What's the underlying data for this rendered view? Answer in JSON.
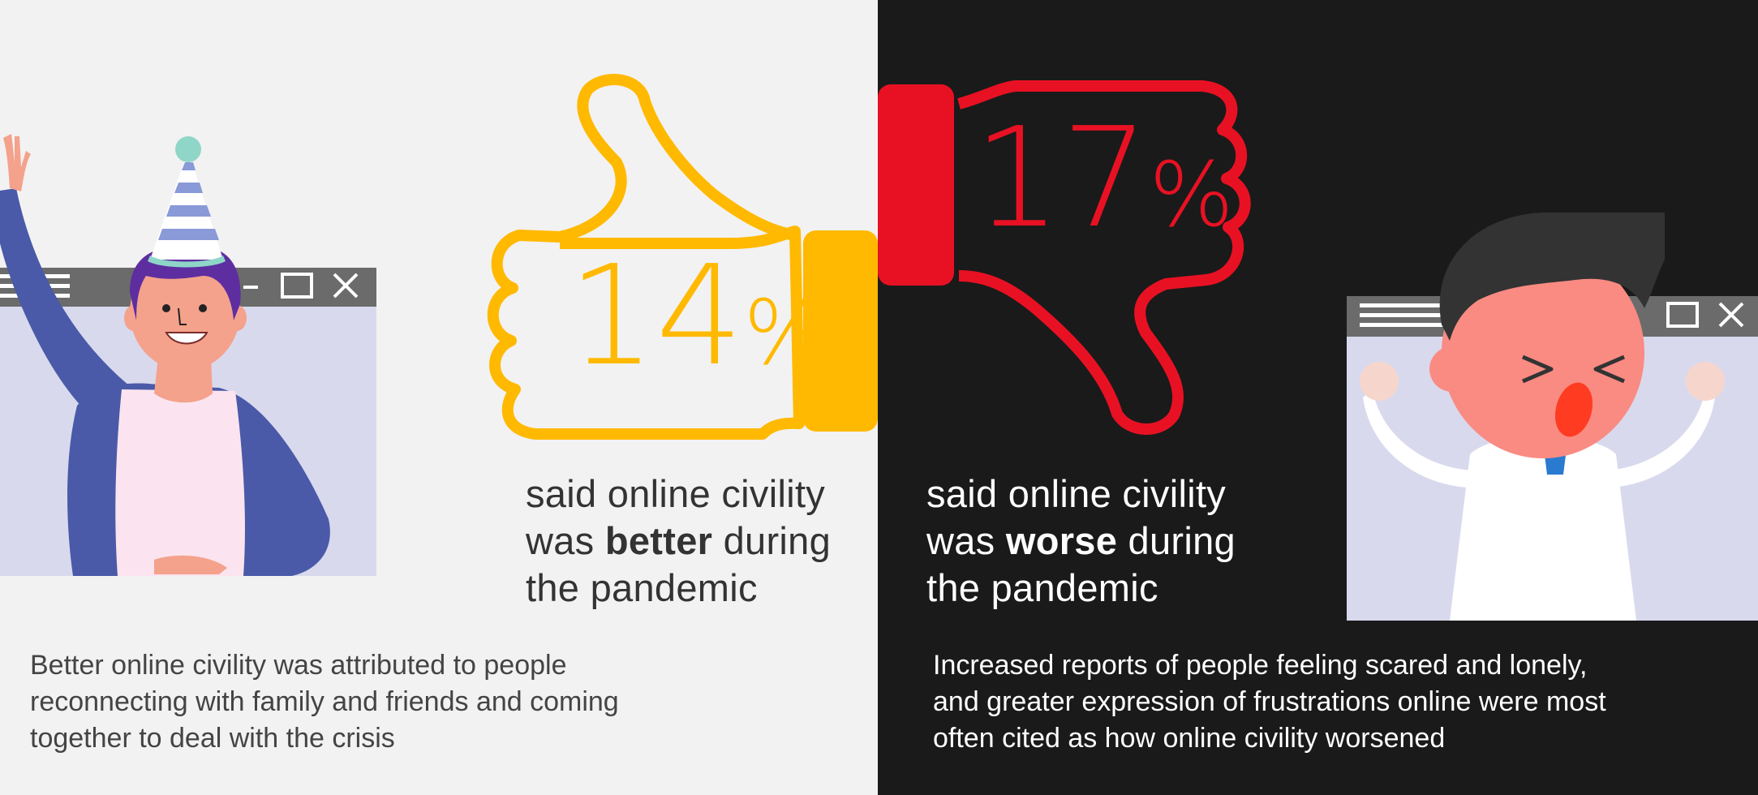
{
  "better": {
    "percent": "14",
    "percent_symbol": "%",
    "line1": "said online civility",
    "line2_prefix": "was ",
    "line2_bold": "better",
    "line2_suffix": " during",
    "line3": "the pandemic",
    "description_lines": [
      "Better online civility was attributed to people",
      "reconnecting with family and friends and coming",
      "together to deal with the crisis"
    ],
    "color": "#ffb900"
  },
  "worse": {
    "percent": "17",
    "percent_symbol": "%",
    "line1": "said online civility",
    "line2_prefix": "was ",
    "line2_bold": "worse",
    "line2_suffix": " during",
    "line3": "the pandemic",
    "description_lines": [
      "Increased reports of people feeling scared and lonely,",
      "and greater expression of frustrations online were most",
      "often cited as how online civility worsened"
    ],
    "color": "#e81123"
  },
  "icons": {
    "thumbs_up": "thumbs-up-icon",
    "thumbs_down": "thumbs-down-icon",
    "window_controls": [
      "minimize-icon",
      "maximize-icon",
      "close-icon"
    ]
  },
  "colors": {
    "left_background": "#f2f2f2",
    "right_background": "#1a1a1a",
    "window_frame": "#d9d9ee",
    "window_titlebar": "#6b6b6b"
  }
}
